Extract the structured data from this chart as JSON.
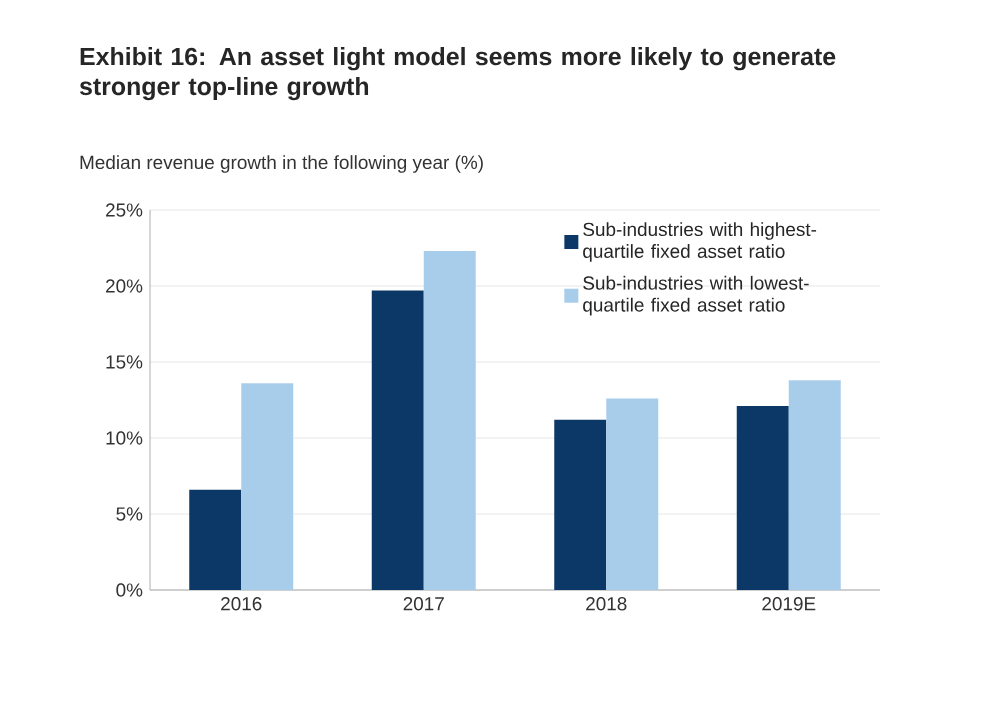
{
  "chart_data": {
    "type": "bar",
    "title": "Exhibit 16: An asset light model seems more likely to generate stronger top-line growth",
    "ylabel": "Median revenue growth in the following year (%)",
    "categories": [
      "2016",
      "2017",
      "2018",
      "2019E"
    ],
    "series": [
      {
        "name": "Sub-industries with highest-quartile fixed asset ratio",
        "color": "#0b3866",
        "values": [
          6.6,
          19.7,
          11.2,
          12.1
        ]
      },
      {
        "name": "Sub-industries with lowest-quartile fixed asset ratio",
        "color": "#a8cdeb",
        "values": [
          13.6,
          22.3,
          12.6,
          13.8
        ]
      }
    ],
    "ylim": [
      0,
      25
    ],
    "yticks": [
      {
        "value": 0,
        "label": "0%"
      },
      {
        "value": 5,
        "label": "5%"
      },
      {
        "value": 10,
        "label": "10%"
      },
      {
        "value": 15,
        "label": "15%"
      },
      {
        "value": 20,
        "label": "20%"
      },
      {
        "value": 25,
        "label": "25%"
      }
    ],
    "grid": "y",
    "legend": "top right"
  }
}
